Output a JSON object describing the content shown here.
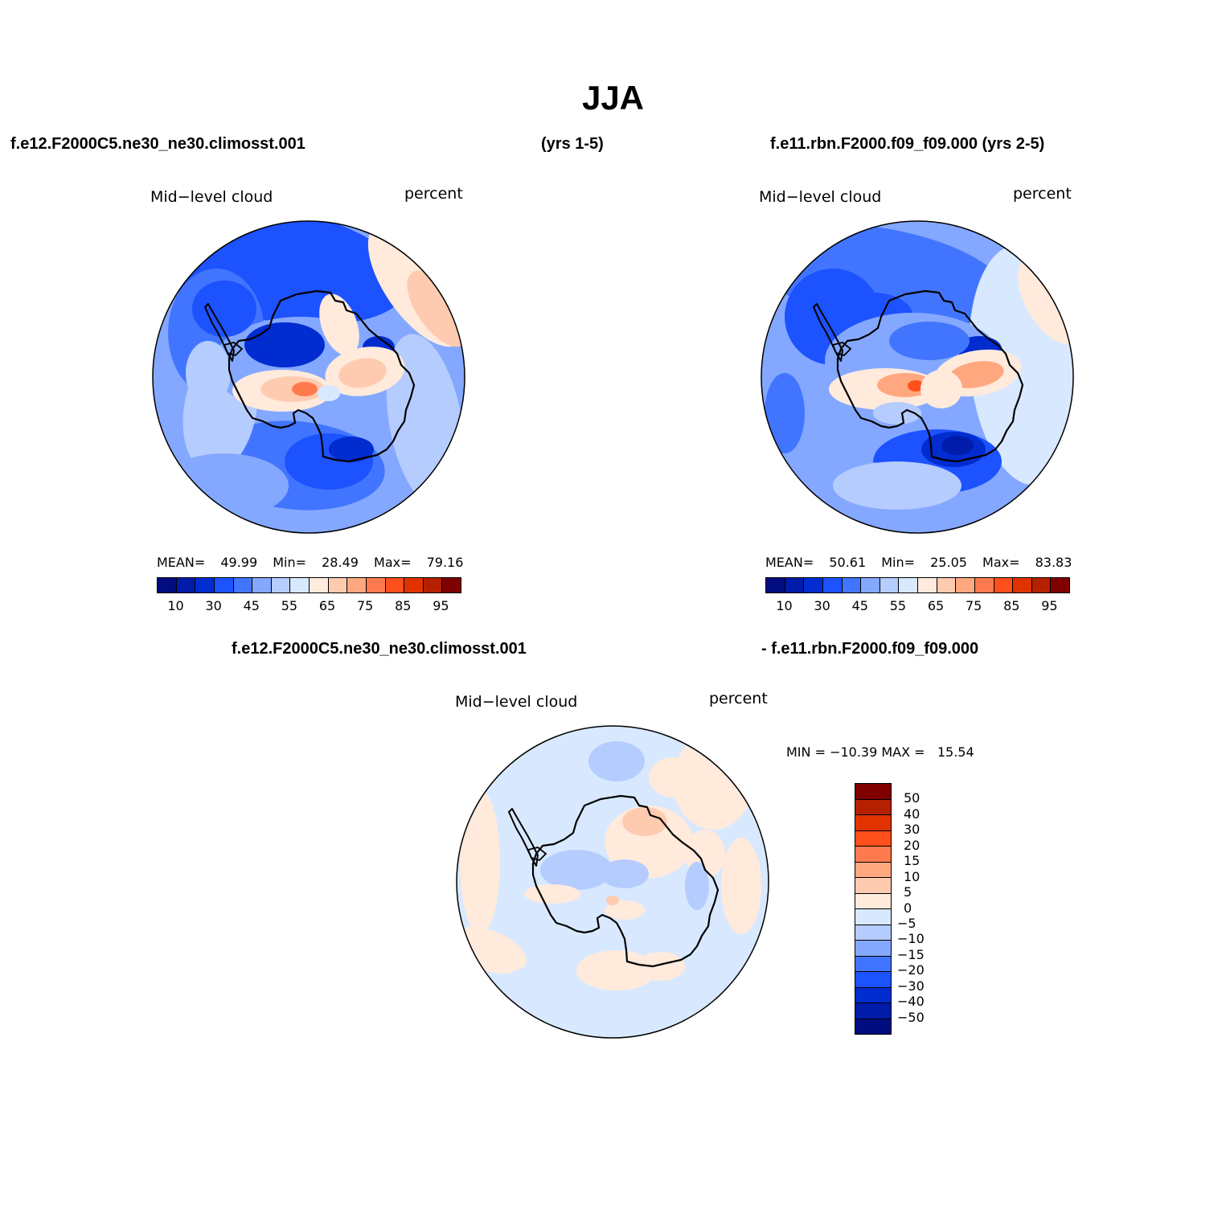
{
  "title": "JJA",
  "headers": {
    "top_left": "f.e12.F2000C5.ne30_ne30.climosst.001",
    "top_mid": "(yrs 1-5)",
    "top_right": "f.e11.rbn.F2000.f09_f09.000 (yrs 2-5)",
    "diff_left": "f.e12.F2000C5.ne30_ne30.climosst.001",
    "diff_right": "- f.e11.rbn.F2000.f09_f09.000"
  },
  "panels": [
    {
      "variable": "Mid−level cloud",
      "units": "percent",
      "stats": {
        "mean_label": "MEAN=",
        "mean": "49.99",
        "min_label": "Min=",
        "min": "28.49",
        "max_label": "Max=",
        "max": "79.16"
      }
    },
    {
      "variable": "Mid−level cloud",
      "units": "percent",
      "stats": {
        "mean_label": "MEAN=",
        "mean": "50.61",
        "min_label": "Min=",
        "min": "25.05",
        "max_label": "Max=",
        "max": "83.83"
      }
    },
    {
      "variable": "Mid−level cloud",
      "units": "percent",
      "stats": {
        "text": "MIN = −10.39 MAX =   15.54"
      }
    }
  ],
  "colorbar_main": {
    "colors": [
      "#000c80",
      "#001ca9",
      "#002cd0",
      "#1d52ff",
      "#4275ff",
      "#84a8ff",
      "#b5ccff",
      "#d8e9ff",
      "#ffeadc",
      "#ffcbb0",
      "#ffa880",
      "#ff7b4f",
      "#ff4f1c",
      "#e03300",
      "#b52100",
      "#800000"
    ],
    "labels": [
      "10",
      "30",
      "45",
      "55",
      "65",
      "75",
      "85",
      "95"
    ]
  },
  "colorbar_diff": {
    "colors": [
      "#800000",
      "#b52100",
      "#e03300",
      "#ff4f1c",
      "#ff7b4f",
      "#ffa880",
      "#ffcbb0",
      "#ffeadc",
      "#d8e9ff",
      "#b5ccff",
      "#84a8ff",
      "#4275ff",
      "#1d52ff",
      "#002cd0",
      "#001ca9",
      "#000c80"
    ],
    "labels": [
      "50",
      "40",
      "30",
      "20",
      "15",
      "10",
      "5",
      "0",
      "−5",
      "−10",
      "−15",
      "−20",
      "−30",
      "−40",
      "−50"
    ]
  },
  "maps": {
    "projection": "south-polar stereographic",
    "field": "mid-level cloud fraction"
  }
}
